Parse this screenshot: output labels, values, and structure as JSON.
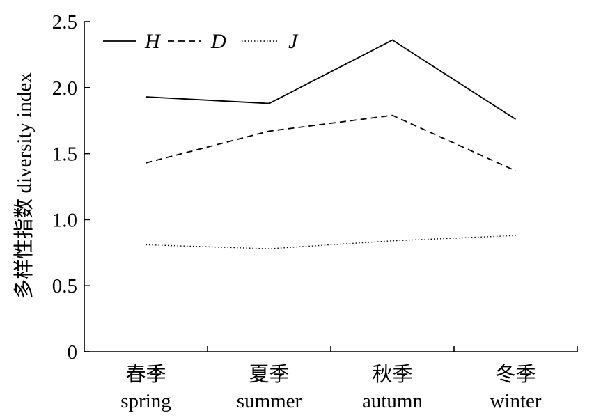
{
  "chart_data": {
    "type": "line",
    "categories": [
      "春季\nspring",
      "夏季\nsummer",
      "秋季\nautumn",
      "冬季\nwinter"
    ],
    "category_labels": [
      {
        "cn": "春季",
        "en": "spring"
      },
      {
        "cn": "夏季",
        "en": "summer"
      },
      {
        "cn": "秋季",
        "en": "autumn"
      },
      {
        "cn": "冬季",
        "en": "winter"
      }
    ],
    "series": [
      {
        "name": "H",
        "style": "solid",
        "values": [
          1.93,
          1.88,
          2.36,
          1.76
        ]
      },
      {
        "name": "D",
        "style": "dashed",
        "values": [
          1.43,
          1.67,
          1.79,
          1.37
        ]
      },
      {
        "name": "J",
        "style": "dotted",
        "values": [
          0.81,
          0.78,
          0.84,
          0.88
        ]
      }
    ],
    "ylabel": "多样性指数 diversity index",
    "xlabel": "",
    "ylim": [
      0,
      2.5
    ],
    "yticks": [
      "0",
      "0.5",
      "1.0",
      "1.5",
      "2.0",
      "2.5"
    ],
    "legend": "top-left",
    "grid": false
  }
}
